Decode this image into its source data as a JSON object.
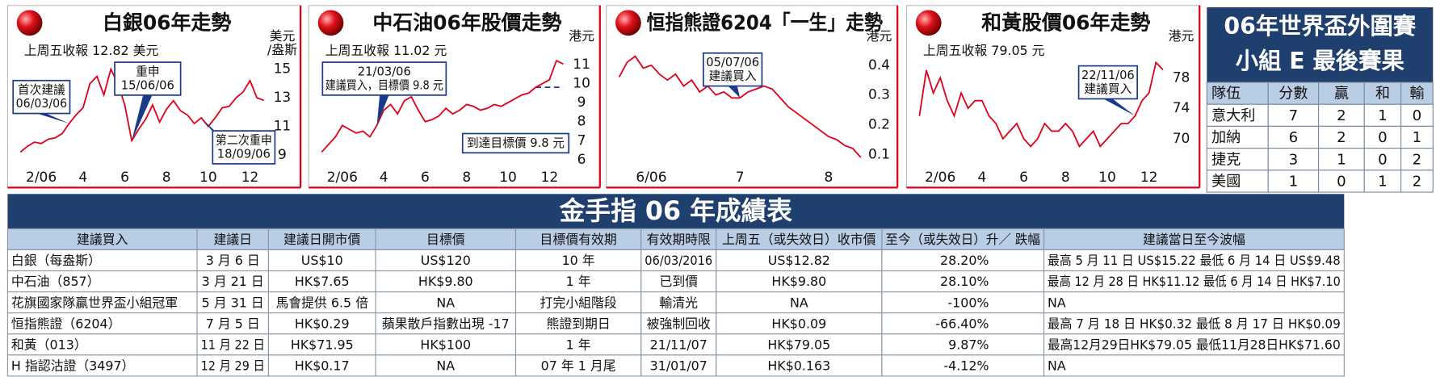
{
  "chart_data": [
    {
      "type": "line",
      "title": "白銀06年走勢",
      "subtitle": "上周五收報 12.82 美元",
      "y_unit": [
        "美元",
        "/盎斯"
      ],
      "color": "#e0001b",
      "grid": false,
      "categories": [
        null,
        null,
        null,
        "2/06",
        null,
        null,
        null,
        null,
        null,
        "4",
        null,
        null,
        null,
        null,
        null,
        "6",
        null,
        null,
        null,
        null,
        null,
        "8",
        null,
        null,
        null,
        null,
        null,
        "10",
        null,
        null,
        null,
        null,
        null,
        "12",
        null,
        null
      ],
      "values": [
        9.2,
        9.6,
        9.9,
        9.8,
        10.1,
        10.2,
        10.5,
        11.2,
        11.8,
        12.3,
        14.0,
        14.5,
        13.2,
        15.0,
        14.0,
        12.5,
        10.0,
        10.8,
        11.5,
        12.5,
        11.3,
        12.2,
        12.8,
        12.1,
        11.8,
        11.2,
        11.6,
        11.0,
        11.6,
        12.3,
        12.4,
        13.0,
        13.4,
        14.2,
        13.0,
        12.82
      ],
      "ylim": [
        8,
        16
      ],
      "yticks": [
        9,
        11,
        13,
        15
      ],
      "annotations": [
        [
          "首次建議",
          "06/03/06"
        ],
        [
          "重申",
          "15/06/06"
        ],
        [
          "第二次重申",
          "18/09/06"
        ]
      ]
    },
    {
      "type": "line",
      "title": "中石油06年股價走勢",
      "subtitle": "上周五收報 11.02 元",
      "y_unit": [
        "港元"
      ],
      "color": "#e0001b",
      "grid": false,
      "categories": [
        null,
        null,
        null,
        "2/06",
        null,
        null,
        null,
        null,
        null,
        "4",
        null,
        null,
        null,
        null,
        null,
        "6",
        null,
        null,
        null,
        null,
        null,
        "8",
        null,
        null,
        null,
        null,
        null,
        "10",
        null,
        null,
        null,
        null,
        null,
        "12",
        null,
        null
      ],
      "values": [
        6.4,
        6.8,
        7.2,
        7.8,
        7.6,
        7.4,
        7.5,
        7.2,
        7.8,
        8.6,
        8.9,
        8.4,
        9.1,
        9.3,
        8.6,
        8.0,
        8.1,
        8.3,
        8.7,
        8.4,
        8.6,
        8.9,
        8.8,
        8.6,
        8.7,
        8.9,
        8.8,
        9.0,
        9.2,
        9.4,
        9.5,
        9.8,
        10.0,
        10.2,
        11.2,
        11.02
      ],
      "ylim": [
        5.5,
        11.5
      ],
      "yticks": [
        6,
        7,
        8,
        9,
        10,
        11
      ],
      "reference_line": 9.8,
      "annotations": [
        [
          "21/03/06",
          "建議買入，目標價 9.8 元"
        ],
        [
          "到達目標價 9.8 元"
        ]
      ]
    },
    {
      "type": "line",
      "title": "恒指熊證6204「一生」走勢",
      "y_unit": [
        "港元"
      ],
      "color": "#e0001b",
      "grid": false,
      "categories": [
        null,
        null,
        null,
        null,
        "6/06",
        null,
        null,
        null,
        null,
        null,
        null,
        null,
        null,
        null,
        null,
        "7",
        null,
        null,
        null,
        null,
        null,
        null,
        null,
        null,
        null,
        null,
        "8",
        null,
        null,
        null,
        null
      ],
      "values": [
        0.36,
        0.41,
        0.43,
        0.39,
        0.4,
        0.37,
        0.35,
        0.37,
        0.33,
        0.35,
        0.31,
        0.33,
        0.3,
        0.31,
        0.29,
        0.29,
        0.31,
        0.32,
        0.33,
        0.32,
        0.29,
        0.26,
        0.24,
        0.22,
        0.2,
        0.18,
        0.16,
        0.15,
        0.13,
        0.12,
        0.09
      ],
      "ylim": [
        0.05,
        0.45
      ],
      "yticks": [
        0.1,
        0.2,
        0.3,
        0.4
      ],
      "annotations": [
        [
          "05/07/06",
          "建議買入"
        ]
      ]
    },
    {
      "type": "line",
      "title": "和黃股價06年走勢",
      "subtitle": "上周五收報 79.05 元",
      "y_unit": [
        "港元"
      ],
      "color": "#e0001b",
      "grid": false,
      "categories": [
        null,
        null,
        null,
        "2/06",
        null,
        null,
        null,
        null,
        null,
        "4",
        null,
        null,
        null,
        null,
        null,
        "6",
        null,
        null,
        null,
        null,
        null,
        "8",
        null,
        null,
        null,
        null,
        null,
        "10",
        null,
        null,
        null,
        null,
        null,
        "12",
        null,
        null
      ],
      "values": [
        73,
        79,
        76,
        78,
        75,
        73,
        76,
        74,
        75,
        75,
        73,
        72,
        70,
        71,
        72,
        70,
        69,
        70,
        72,
        71,
        71,
        72,
        71,
        69,
        70,
        71,
        69,
        70,
        71,
        72,
        72,
        73,
        75,
        76,
        80,
        79.05
      ],
      "ylim": [
        66,
        81
      ],
      "yticks": [
        70,
        74,
        78
      ],
      "annotations": [
        [
          "22/11/06",
          "建議買入"
        ]
      ]
    }
  ],
  "group_table": {
    "title": [
      "06年世界盃外圍賽",
      "小組 E 最後賽果"
    ],
    "header": [
      "隊伍",
      "分數",
      "贏",
      "和",
      "輸"
    ],
    "rows": [
      [
        "意大利",
        7,
        2,
        1,
        0
      ],
      [
        "加納",
        6,
        2,
        0,
        1
      ],
      [
        "捷克",
        3,
        1,
        0,
        2
      ],
      [
        "美國",
        1,
        0,
        1,
        2
      ]
    ]
  },
  "results_table": {
    "title": "金手指 06 年成績表",
    "header": [
      "建議買入",
      "建議日",
      "建議日開市價",
      "目標價",
      "目標價有效期",
      "有效期時限",
      "上周五（或失效日）收市價",
      "至今（或失效日）升／ 跌幅",
      "建議當日至今波幅"
    ],
    "rows": [
      [
        "白銀（每盎斯）",
        "3 月 6 日",
        "US$10",
        "US$120",
        "10 年",
        "06/03/2016",
        "US$12.82",
        "28.20%",
        "最高 5 月 11 日 US$15.22 最低 6 月 14 日 US$9.48"
      ],
      [
        "中石油（857）",
        "3 月 21 日",
        "HK$7.65",
        "HK$9.80",
        "1 年",
        "已到價",
        "HK$9.80",
        "28.10%",
        "最高 12 月 28 日 HK$11.12 最低 6 月 14 日 HK$7.10"
      ],
      [
        "花旗國家隊贏世界盃小組冠軍",
        "5 月 31 日",
        "馬會提供 6.5 倍",
        "NA",
        "打完小組階段",
        "輸清光",
        "NA",
        "-100%",
        "NA"
      ],
      [
        "恒指熊證（6204）",
        "7 月 5 日",
        "HK$0.29",
        "蘋果散戶指數出現 -17",
        "熊證到期日",
        "被強制回收",
        "HK$0.09",
        "-66.40%",
        "最高 7 月 18 日 HK$0.32 最低 8 月 17 日 HK$0.09"
      ],
      [
        "和黃（013）",
        "11 月 22 日",
        "HK$71.95",
        "HK$100",
        "1 年",
        "21/11/07",
        "HK$79.05",
        "9.87%",
        "最高12月29日HK$79.05 最低11月28日HK$71.60"
      ],
      [
        "H 指認沽證（3497）",
        "12 月 29 日",
        "HK$0.17",
        "NA",
        "07 年 1 月尾",
        "31/01/07",
        "HK$0.163",
        "-4.12%",
        "NA"
      ]
    ]
  }
}
